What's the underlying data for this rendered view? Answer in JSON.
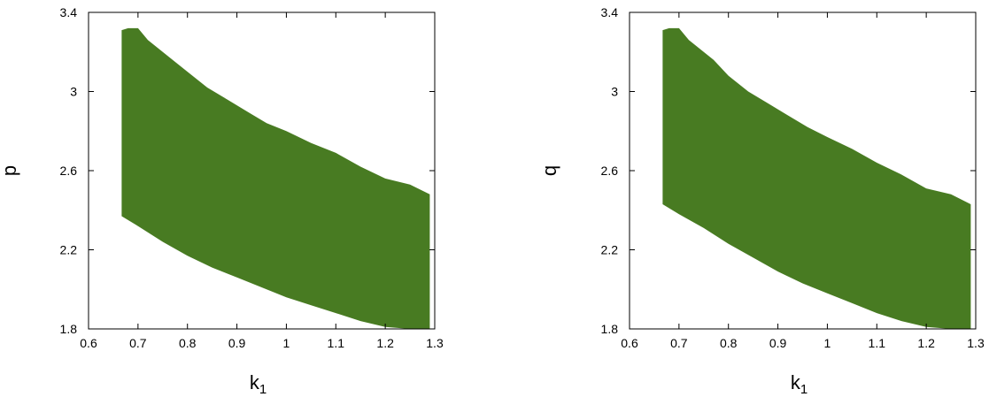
{
  "chart_data": [
    {
      "type": "area",
      "xlabel": {
        "base": "k",
        "sub": "1"
      },
      "ylabel": "p",
      "xlim": [
        0.6,
        1.3
      ],
      "ylim": [
        1.8,
        3.4
      ],
      "xticks": [
        "0.6",
        "0.7",
        "0.8",
        "0.9",
        "1",
        "1.1",
        "1.2",
        "1.3"
      ],
      "yticks": [
        "1.8",
        "2.2",
        "2.6",
        "3",
        "3.4"
      ],
      "grid": false,
      "fill_color": "#487b22",
      "region": {
        "upper": [
          [
            0.667,
            3.31
          ],
          [
            0.68,
            3.32
          ],
          [
            0.7,
            3.32
          ],
          [
            0.72,
            3.26
          ],
          [
            0.74,
            3.22
          ],
          [
            0.77,
            3.16
          ],
          [
            0.8,
            3.1
          ],
          [
            0.84,
            3.02
          ],
          [
            0.88,
            2.96
          ],
          [
            0.92,
            2.9
          ],
          [
            0.96,
            2.84
          ],
          [
            1.0,
            2.8
          ],
          [
            1.05,
            2.74
          ],
          [
            1.1,
            2.69
          ],
          [
            1.15,
            2.62
          ],
          [
            1.2,
            2.56
          ],
          [
            1.25,
            2.53
          ],
          [
            1.29,
            2.48
          ]
        ],
        "lower": [
          [
            0.667,
            2.37
          ],
          [
            0.7,
            2.32
          ],
          [
            0.75,
            2.24
          ],
          [
            0.8,
            2.17
          ],
          [
            0.85,
            2.11
          ],
          [
            0.9,
            2.06
          ],
          [
            0.95,
            2.01
          ],
          [
            1.0,
            1.96
          ],
          [
            1.05,
            1.92
          ],
          [
            1.1,
            1.88
          ],
          [
            1.15,
            1.84
          ],
          [
            1.2,
            1.81
          ],
          [
            1.25,
            1.8
          ],
          [
            1.29,
            1.8
          ]
        ]
      }
    },
    {
      "type": "area",
      "xlabel": {
        "base": "k",
        "sub": "1"
      },
      "ylabel": "q",
      "xlim": [
        0.6,
        1.3
      ],
      "ylim": [
        1.8,
        3.4
      ],
      "xticks": [
        "0.6",
        "0.7",
        "0.8",
        "0.9",
        "1",
        "1.1",
        "1.2",
        "1.3"
      ],
      "yticks": [
        "1.8",
        "2.2",
        "2.6",
        "3",
        "3.4"
      ],
      "grid": false,
      "fill_color": "#487b22",
      "region": {
        "upper": [
          [
            0.667,
            3.31
          ],
          [
            0.68,
            3.32
          ],
          [
            0.7,
            3.32
          ],
          [
            0.72,
            3.26
          ],
          [
            0.74,
            3.22
          ],
          [
            0.77,
            3.16
          ],
          [
            0.8,
            3.08
          ],
          [
            0.84,
            3.0
          ],
          [
            0.88,
            2.94
          ],
          [
            0.92,
            2.88
          ],
          [
            0.96,
            2.82
          ],
          [
            1.0,
            2.77
          ],
          [
            1.05,
            2.71
          ],
          [
            1.1,
            2.64
          ],
          [
            1.15,
            2.58
          ],
          [
            1.2,
            2.51
          ],
          [
            1.25,
            2.48
          ],
          [
            1.29,
            2.43
          ]
        ],
        "lower": [
          [
            0.667,
            2.43
          ],
          [
            0.7,
            2.38
          ],
          [
            0.75,
            2.31
          ],
          [
            0.8,
            2.23
          ],
          [
            0.85,
            2.16
          ],
          [
            0.9,
            2.09
          ],
          [
            0.95,
            2.03
          ],
          [
            1.0,
            1.98
          ],
          [
            1.05,
            1.93
          ],
          [
            1.1,
            1.88
          ],
          [
            1.15,
            1.84
          ],
          [
            1.2,
            1.81
          ],
          [
            1.25,
            1.8
          ],
          [
            1.29,
            1.8
          ]
        ]
      }
    }
  ]
}
